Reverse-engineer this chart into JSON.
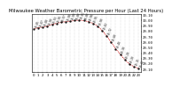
{
  "title": "Milwaukee Weather Barometric Pressure per Hour (Last 24 Hours)",
  "hours": [
    0,
    1,
    2,
    3,
    4,
    5,
    6,
    7,
    8,
    9,
    10,
    11,
    12,
    13,
    14,
    15,
    16,
    17,
    18,
    19,
    20,
    21,
    22,
    23
  ],
  "pressure": [
    29.85,
    29.87,
    29.88,
    29.9,
    29.93,
    29.95,
    29.97,
    29.98,
    29.99,
    30.0,
    30.01,
    30.0,
    29.98,
    29.95,
    29.9,
    29.82,
    29.72,
    29.6,
    29.48,
    29.38,
    29.28,
    29.2,
    29.15,
    29.12
  ],
  "line_color": "#cc0000",
  "marker_color": "#111111",
  "bg_color": "#ffffff",
  "grid_color": "#999999",
  "title_fontsize": 3.8,
  "tick_fontsize": 2.8,
  "label_fontsize": 2.2,
  "ylim": [
    29.05,
    30.12
  ],
  "yticks": [
    29.1,
    29.2,
    29.3,
    29.4,
    29.5,
    29.6,
    29.7,
    29.8,
    29.9,
    30.0,
    30.1
  ]
}
